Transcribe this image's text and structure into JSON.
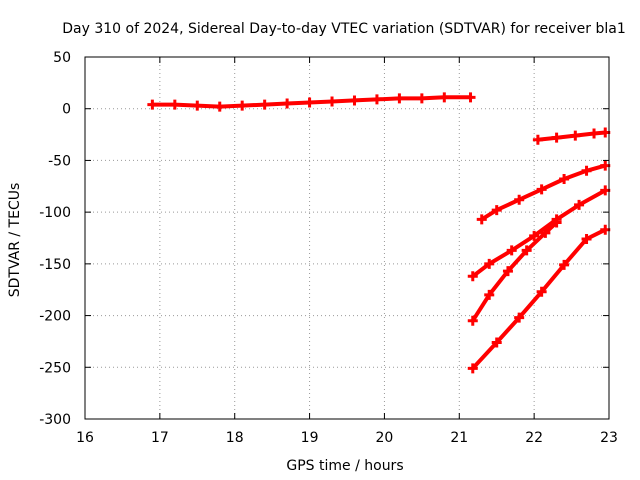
{
  "chart_data": {
    "type": "scatter",
    "title": "Day 310 of 2024, Sidereal Day-to-day VTEC variation (SDTVAR) for receiver bla1",
    "xlabel": "GPS time / hours",
    "ylabel": "SDTVAR / TECUs",
    "xlim": [
      16,
      23
    ],
    "ylim": [
      -300,
      50
    ],
    "xticks": [
      16,
      17,
      18,
      19,
      20,
      21,
      22,
      23
    ],
    "yticks": [
      50,
      0,
      -50,
      -100,
      -150,
      -200,
      -250,
      -300
    ],
    "xtick_labels": [
      "16",
      "17",
      "18",
      "19",
      "20",
      "21",
      "22",
      "23"
    ],
    "ytick_labels": [
      "50",
      "0",
      "-50",
      "-100",
      "-150",
      "-200",
      "-250",
      "-300"
    ],
    "grid": true,
    "marker_color": "#ff0000",
    "series": [
      {
        "x": [
          16.9,
          17.2,
          17.5,
          17.8,
          18.1,
          18.4,
          18.7,
          19.0,
          19.3,
          19.6,
          19.9,
          20.2,
          20.5,
          20.8,
          21.15
        ],
        "y": [
          4,
          4,
          3,
          2,
          3,
          4,
          5,
          6,
          7,
          8,
          9,
          10,
          10,
          11,
          11
        ]
      },
      {
        "x": [
          22.05,
          22.3,
          22.55,
          22.8,
          22.95
        ],
        "y": [
          -30,
          -28,
          -26,
          -24,
          -23
        ]
      },
      {
        "x": [
          21.3,
          21.5,
          21.8,
          22.1,
          22.4,
          22.7,
          22.95
        ],
        "y": [
          -107,
          -98,
          -88,
          -78,
          -68,
          -60,
          -55
        ]
      },
      {
        "x": [
          21.18,
          21.4,
          21.7,
          22.0,
          22.3,
          22.6,
          22.95
        ],
        "y": [
          -162,
          -150,
          -137,
          -123,
          -107,
          -93,
          -79
        ]
      },
      {
        "x": [
          21.18,
          21.4,
          21.65,
          21.9,
          22.15,
          22.3
        ],
        "y": [
          -205,
          -180,
          -157,
          -137,
          -120,
          -110
        ]
      },
      {
        "x": [
          21.18,
          21.5,
          21.8,
          22.1,
          22.4,
          22.7,
          22.95
        ],
        "y": [
          -251,
          -226,
          -202,
          -177,
          -151,
          -126,
          -117
        ]
      }
    ]
  }
}
